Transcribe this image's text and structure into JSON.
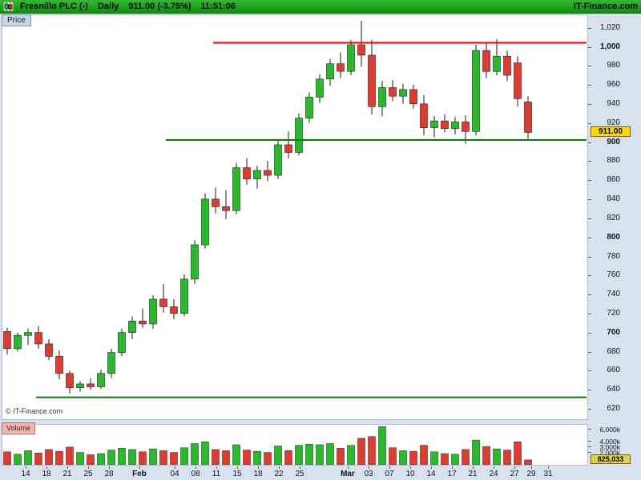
{
  "header": {
    "title": "Fresnillo PLC (-)",
    "timeframe": "Daily",
    "quote": "911.00 (-3.75%)",
    "time": "11:51:06",
    "brand": "IT-Finance.com"
  },
  "price_pane": {
    "tab_label": "Price",
    "copyright": "© IT-Finance.com",
    "last_price_label": "911.00"
  },
  "volume_pane": {
    "tab_label": "Volume",
    "last_volume_label": "825,033"
  },
  "chart_data": {
    "type": "candlestick",
    "symbol": "Fresnillo PLC",
    "period": "Daily",
    "last_price": 911.0,
    "change_pct": -3.75,
    "last_volume_k": 825,
    "ylim": [
      610,
      1034
    ],
    "vol_axis_max_k": 6800,
    "colors": {
      "up": "#27bb27",
      "down": "#e23b2e",
      "wick": "#15181d"
    },
    "y_ticks": [
      {
        "label": "1,020",
        "value": 1020,
        "bold": false
      },
      {
        "label": "1,000",
        "value": 1000,
        "bold": true
      },
      {
        "label": "980",
        "value": 980,
        "bold": false
      },
      {
        "label": "960",
        "value": 960,
        "bold": false
      },
      {
        "label": "940",
        "value": 940,
        "bold": false
      },
      {
        "label": "920",
        "value": 920,
        "bold": false
      },
      {
        "label": "900",
        "value": 900,
        "bold": true
      },
      {
        "label": "880",
        "value": 880,
        "bold": false
      },
      {
        "label": "860",
        "value": 860,
        "bold": false
      },
      {
        "label": "840",
        "value": 840,
        "bold": false
      },
      {
        "label": "820",
        "value": 820,
        "bold": false
      },
      {
        "label": "800",
        "value": 800,
        "bold": true
      },
      {
        "label": "780",
        "value": 780,
        "bold": false
      },
      {
        "label": "760",
        "value": 760,
        "bold": false
      },
      {
        "label": "740",
        "value": 740,
        "bold": false
      },
      {
        "label": "720",
        "value": 720,
        "bold": false
      },
      {
        "label": "700",
        "value": 700,
        "bold": true
      },
      {
        "label": "680",
        "value": 680,
        "bold": false
      },
      {
        "label": "660",
        "value": 660,
        "bold": false
      },
      {
        "label": "640",
        "value": 640,
        "bold": false
      },
      {
        "label": "620",
        "value": 620,
        "bold": false
      }
    ],
    "x_ticks": [
      {
        "label": "14",
        "x": 30,
        "bold": false
      },
      {
        "label": "18",
        "x": 56,
        "bold": false
      },
      {
        "label": "21",
        "x": 82,
        "bold": false
      },
      {
        "label": "25",
        "x": 108,
        "bold": false
      },
      {
        "label": "28",
        "x": 134,
        "bold": false
      },
      {
        "label": "Feb",
        "x": 172,
        "bold": true
      },
      {
        "label": "04",
        "x": 216,
        "bold": false
      },
      {
        "label": "08",
        "x": 242,
        "bold": false
      },
      {
        "label": "11",
        "x": 268,
        "bold": false
      },
      {
        "label": "15",
        "x": 294,
        "bold": false
      },
      {
        "label": "18",
        "x": 320,
        "bold": false
      },
      {
        "label": "22",
        "x": 346,
        "bold": false
      },
      {
        "label": "25",
        "x": 372,
        "bold": false
      },
      {
        "label": "Mar",
        "x": 432,
        "bold": true
      },
      {
        "label": "03",
        "x": 458,
        "bold": false
      },
      {
        "label": "07",
        "x": 484,
        "bold": false
      },
      {
        "label": "10",
        "x": 510,
        "bold": false
      },
      {
        "label": "14",
        "x": 536,
        "bold": false
      },
      {
        "label": "17",
        "x": 562,
        "bold": false
      },
      {
        "label": "21",
        "x": 588,
        "bold": false
      },
      {
        "label": "24",
        "x": 614,
        "bold": false
      },
      {
        "label": "27",
        "x": 640,
        "bold": false
      },
      {
        "label": "29",
        "x": 661,
        "bold": false
      },
      {
        "label": "31",
        "x": 682,
        "bold": false
      }
    ],
    "vol_ticks": [
      {
        "label": "6,000k",
        "value_k": 6000
      },
      {
        "label": "4,000k",
        "value_k": 4000
      },
      {
        "label": "3,000k",
        "value_k": 3000
      },
      {
        "label": "2,000k",
        "value_k": 2000
      }
    ],
    "hlines": [
      {
        "name": "resistance-line",
        "value": 1005,
        "color": "#ee0000",
        "x1": 263,
        "x2": 729,
        "width": 2
      },
      {
        "name": "support-line",
        "value": 903,
        "color": "#067d06",
        "x1": 204,
        "x2": 729,
        "width": 2
      },
      {
        "name": "lower-support-line",
        "value": 633,
        "color": "#067d06",
        "x1": 42,
        "x2": 729,
        "width": 2
      }
    ],
    "candle_columns": [
      "date",
      "open",
      "high",
      "low",
      "close",
      "volume_k"
    ],
    "candles": [
      [
        "13 Jan",
        702,
        706,
        678,
        684,
        2200
      ],
      [
        "14 Jan",
        684,
        701,
        681,
        698,
        1800
      ],
      [
        "15 Jan",
        698,
        705,
        688,
        701,
        2400
      ],
      [
        "16 Jan",
        701,
        708,
        684,
        689,
        2000
      ],
      [
        "17 Jan",
        689,
        694,
        672,
        676,
        2600
      ],
      [
        "20 Jan",
        676,
        682,
        652,
        658,
        2300
      ],
      [
        "21 Jan",
        658,
        661,
        637,
        643,
        3000
      ],
      [
        "22 Jan",
        643,
        650,
        639,
        647,
        2100
      ],
      [
        "23 Jan",
        647,
        653,
        641,
        644,
        1700
      ],
      [
        "24 Jan",
        644,
        662,
        642,
        658,
        1900
      ],
      [
        "27 Jan",
        658,
        684,
        653,
        680,
        2500
      ],
      [
        "28 Jan",
        680,
        705,
        676,
        701,
        2800
      ],
      [
        "29 Jan",
        701,
        718,
        694,
        713,
        2600
      ],
      [
        "30 Jan",
        713,
        726,
        706,
        710,
        2200
      ],
      [
        "31 Jan",
        710,
        740,
        705,
        736,
        2700
      ],
      [
        "03 Feb",
        736,
        752,
        722,
        728,
        2400
      ],
      [
        "04 Feb",
        728,
        736,
        715,
        721,
        2100
      ],
      [
        "05 Feb",
        721,
        762,
        718,
        757,
        2900
      ],
      [
        "06 Feb",
        757,
        798,
        752,
        793,
        3600
      ],
      [
        "07 Feb",
        793,
        847,
        789,
        841,
        3900
      ],
      [
        "10 Feb",
        841,
        853,
        826,
        833,
        2600
      ],
      [
        "11 Feb",
        833,
        850,
        820,
        829,
        2400
      ],
      [
        "12 Feb",
        829,
        879,
        825,
        874,
        3400
      ],
      [
        "13 Feb",
        874,
        884,
        856,
        862,
        2500
      ],
      [
        "14 Feb",
        862,
        876,
        852,
        871,
        2300
      ],
      [
        "17 Feb",
        871,
        881,
        860,
        866,
        2100
      ],
      [
        "18 Feb",
        866,
        903,
        862,
        898,
        3200
      ],
      [
        "19 Feb",
        898,
        912,
        884,
        890,
        2400
      ],
      [
        "20 Feb",
        890,
        931,
        887,
        926,
        3300
      ],
      [
        "21 Feb",
        926,
        953,
        921,
        948,
        3500
      ],
      [
        "24 Feb",
        948,
        972,
        942,
        967,
        3400
      ],
      [
        "25 Feb",
        967,
        988,
        960,
        983,
        3600
      ],
      [
        "26 Feb",
        983,
        995,
        968,
        975,
        2800
      ],
      [
        "27 Feb",
        975,
        1008,
        971,
        1003,
        3300
      ],
      [
        "28 Feb",
        1003,
        1028,
        980,
        992,
        4500
      ],
      [
        "03 Mar",
        992,
        1008,
        930,
        938,
        4800
      ],
      [
        "04 Mar",
        938,
        965,
        928,
        958,
        6500
      ],
      [
        "05 Mar",
        958,
        966,
        944,
        949,
        2900
      ],
      [
        "06 Mar",
        949,
        962,
        941,
        956,
        2400
      ],
      [
        "07 Mar",
        956,
        961,
        936,
        941,
        2300
      ],
      [
        "10 Mar",
        941,
        950,
        908,
        916,
        3300
      ],
      [
        "11 Mar",
        916,
        928,
        906,
        923,
        2200
      ],
      [
        "12 Mar",
        923,
        930,
        911,
        915,
        1900
      ],
      [
        "13 Mar",
        915,
        927,
        909,
        922,
        1800
      ],
      [
        "14 Mar",
        922,
        929,
        899,
        912,
        2600
      ],
      [
        "17 Mar",
        912,
        1003,
        908,
        997,
        4200
      ],
      [
        "18 Mar",
        997,
        1005,
        968,
        975,
        3100
      ],
      [
        "19 Mar",
        975,
        1009,
        971,
        991,
        2700
      ],
      [
        "20 Mar",
        991,
        997,
        965,
        971,
        2500
      ],
      [
        "21 Mar",
        984,
        991,
        938,
        946.5,
        3900
      ],
      [
        "24 Mar",
        943,
        949,
        904,
        911,
        825
      ]
    ]
  }
}
